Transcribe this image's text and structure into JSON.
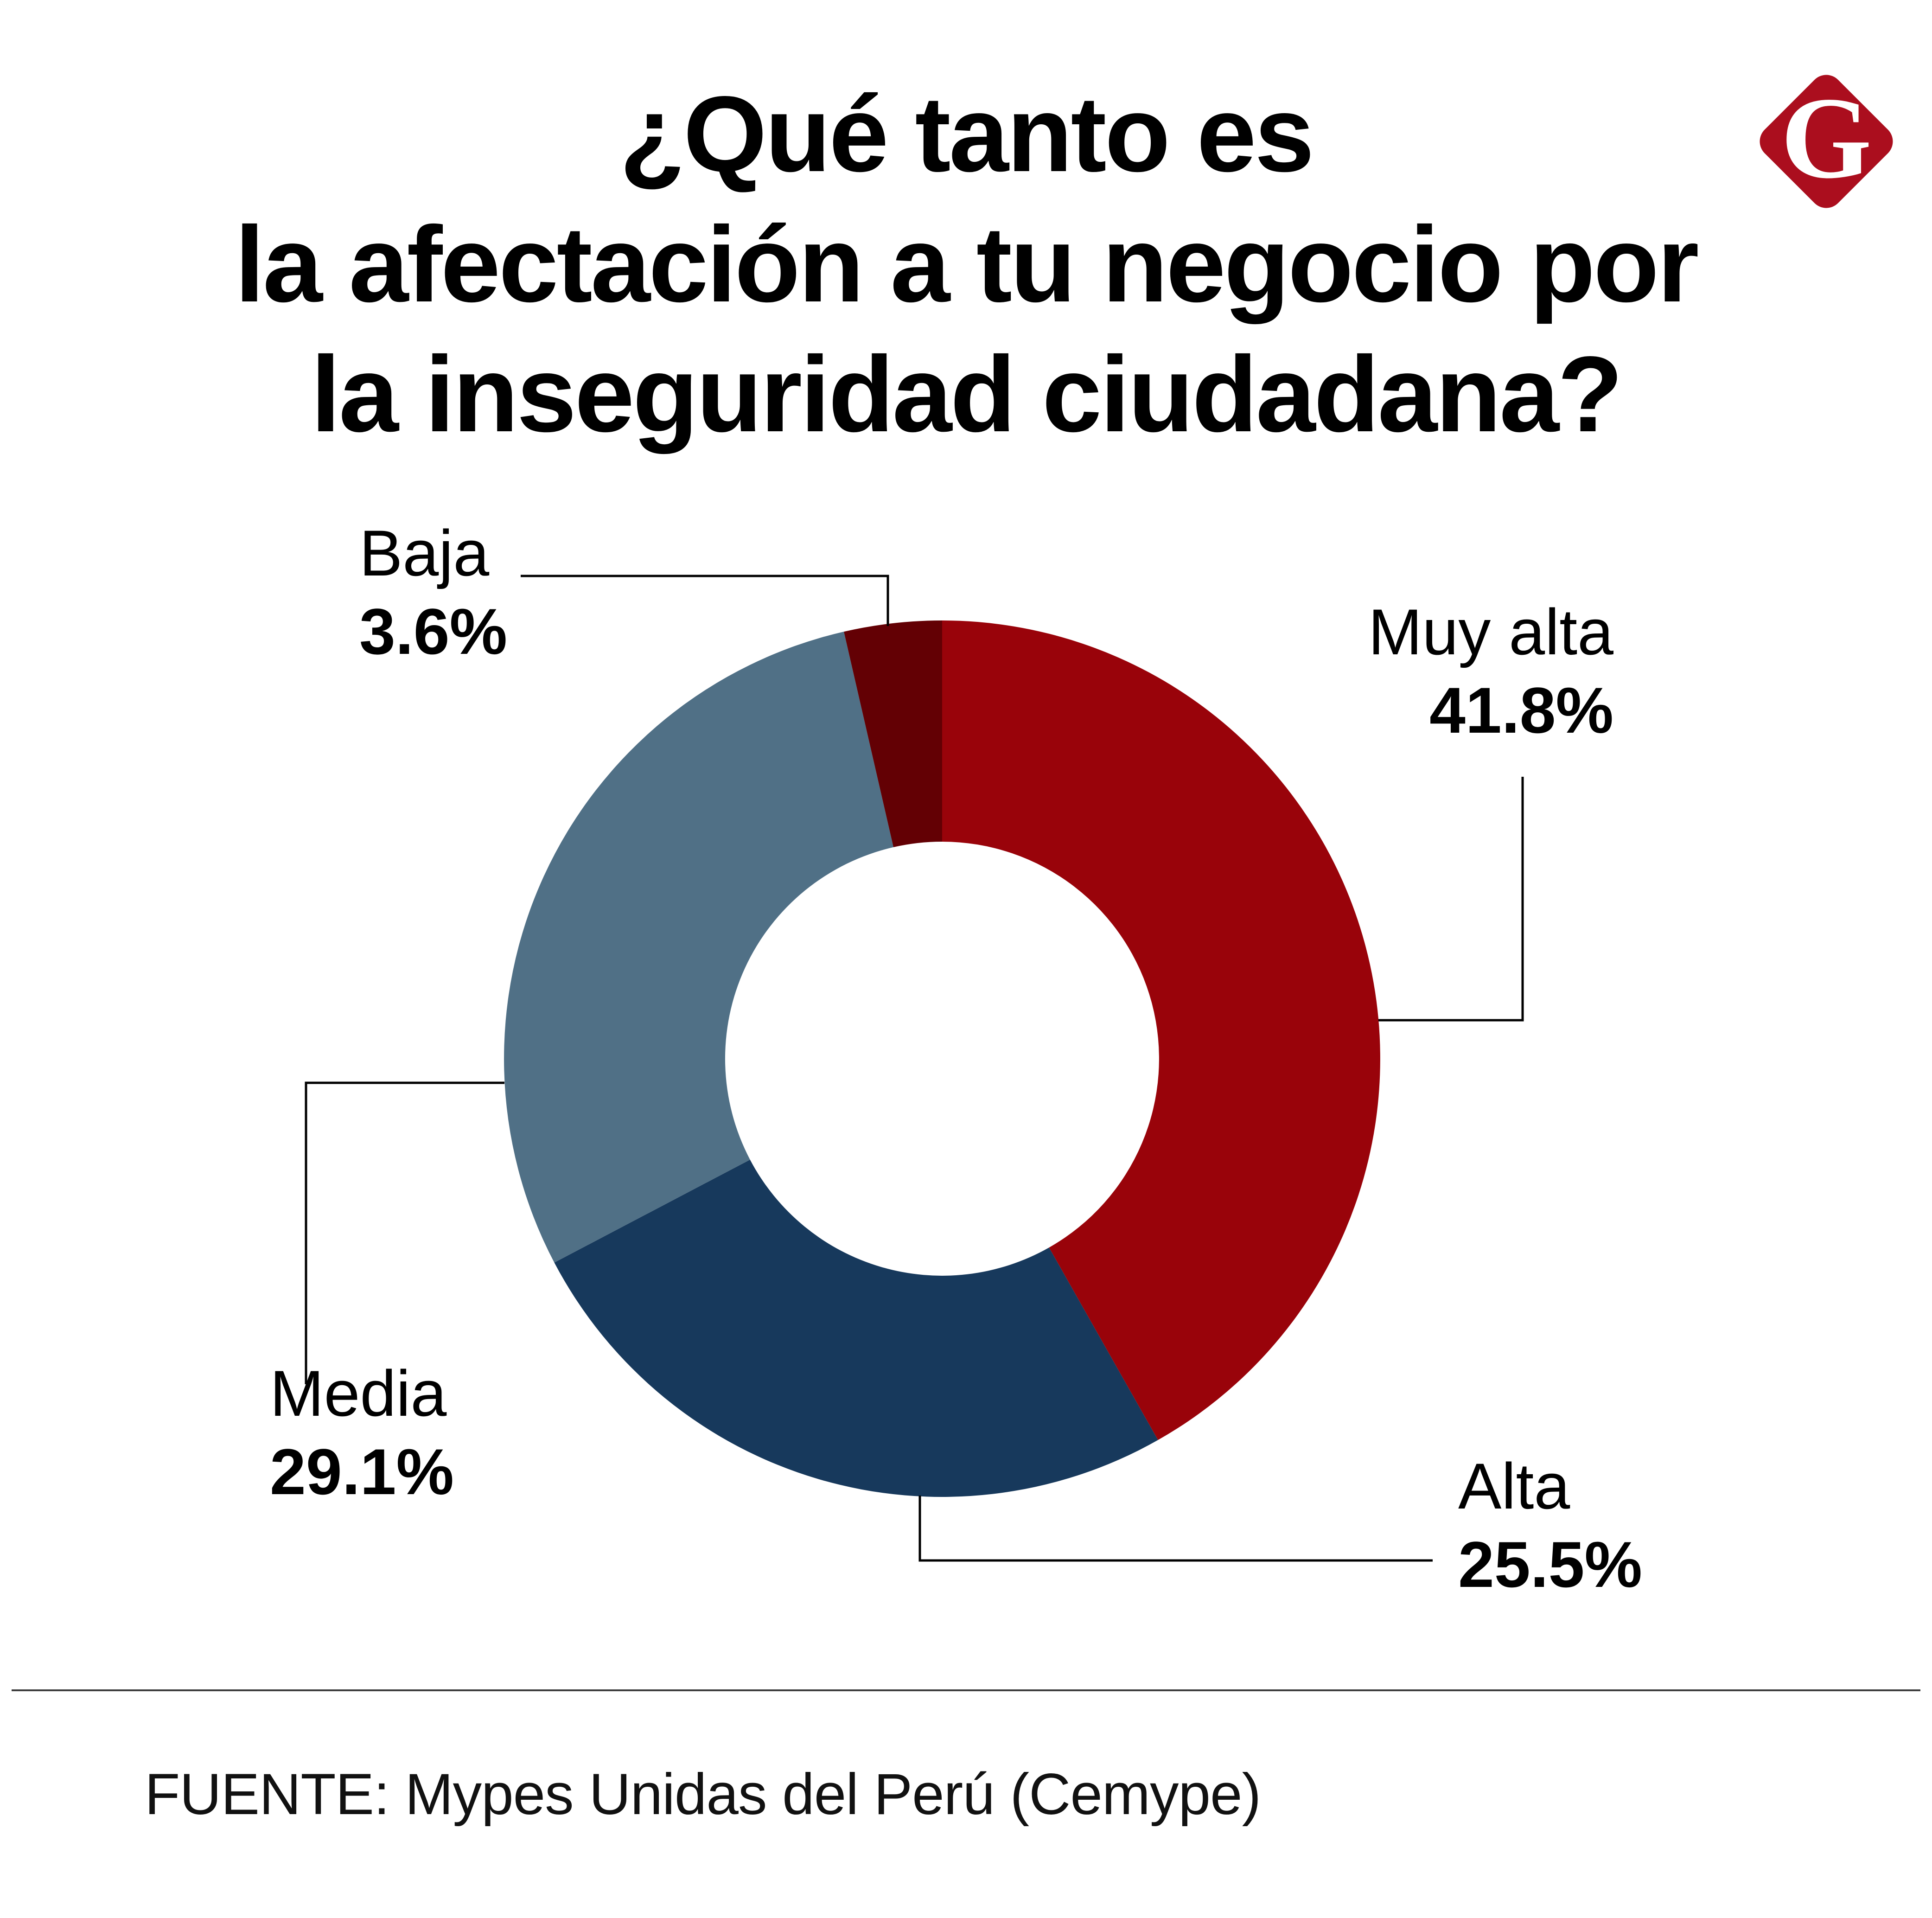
{
  "title": {
    "line1": "¿Qué tanto es",
    "line2": "la afectación a tu negocio por",
    "line3": "la inseguridad ciudadana?"
  },
  "logo": {
    "letter": "G",
    "color": "#AB0E1E"
  },
  "source": {
    "text": "FUENTE: Mypes Unidas del Perú (Cemype)"
  },
  "colors": {
    "background": "#ffffff",
    "text": "#000000",
    "connector": "#000000",
    "divider": "#3c3c3c"
  },
  "chart_data": {
    "type": "pie",
    "donut": true,
    "inner_radius_ratio": 0.495,
    "start_angle_deg": 0,
    "direction": "clockwise",
    "legend_position": "none",
    "labels_style": "callouts-with-leader-lines",
    "unit": "%",
    "title": "¿Qué tanto es la afectación a tu negocio por la inseguridad ciudadana?",
    "categories": [
      "Muy alta",
      "Alta",
      "Media",
      "Baja"
    ],
    "values": [
      41.8,
      25.5,
      29.1,
      3.6
    ],
    "slices": [
      {
        "label": "Muy alta",
        "value": 41.8,
        "display": "41.8%",
        "color": "#99030A"
      },
      {
        "label": "Alta",
        "value": 25.5,
        "display": "25.5%",
        "color": "#17395C"
      },
      {
        "label": "Media",
        "value": 29.1,
        "display": "29.1%",
        "color": "#507086"
      },
      {
        "label": "Baja",
        "value": 3.6,
        "display": "3.6%",
        "color": "#630004"
      }
    ]
  }
}
